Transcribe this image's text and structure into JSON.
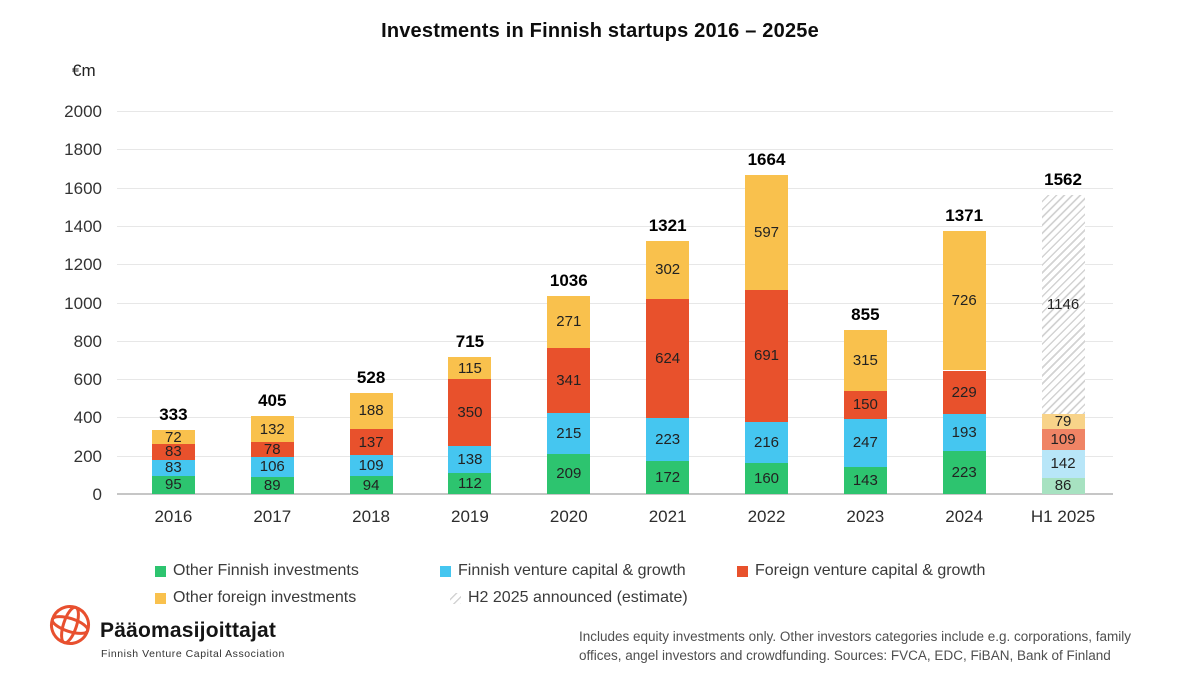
{
  "chart_data": {
    "type": "bar",
    "stacked": true,
    "title": "Investments in Finnish startups 2016 – 2025e",
    "ylabel": "€m",
    "xlabel": "",
    "ylim": [
      0,
      2000
    ],
    "ytick_step": 200,
    "yticks": [
      0,
      200,
      400,
      600,
      800,
      1000,
      1200,
      1400,
      1600,
      1800,
      2000
    ],
    "grid": true,
    "legend_position": "bottom",
    "categories": [
      "2016",
      "2017",
      "2018",
      "2019",
      "2020",
      "2021",
      "2022",
      "2023",
      "2024",
      "H1 2025"
    ],
    "series": [
      {
        "name": "Other Finnish investments",
        "color": "#2dc46f",
        "muted_color": "#a7e2c1",
        "values": [
          95,
          89,
          94,
          112,
          209,
          172,
          160,
          143,
          223,
          86
        ]
      },
      {
        "name": "Finnish venture capital & growth",
        "color": "#45c6f0",
        "muted_color": "#b8e6f8",
        "values": [
          83,
          106,
          109,
          138,
          215,
          223,
          216,
          247,
          193,
          142
        ]
      },
      {
        "name": "Foreign venture capital & growth",
        "color": "#e8512c",
        "muted_color": "#ef8465",
        "values": [
          83,
          78,
          137,
          350,
          341,
          624,
          691,
          150,
          229,
          109
        ]
      },
      {
        "name": "Other foreign investments",
        "color": "#f9c14d",
        "muted_color": "#f8d389",
        "values": [
          72,
          132,
          188,
          115,
          271,
          302,
          597,
          315,
          726,
          79
        ]
      },
      {
        "name": "H2 2025 announced (estimate)",
        "pattern": "hatch",
        "values": [
          0,
          0,
          0,
          0,
          0,
          0,
          0,
          0,
          0,
          1146
        ]
      }
    ],
    "totals": [
      333,
      405,
      528,
      715,
      1036,
      1321,
      1664,
      855,
      1371,
      1562
    ],
    "muted_category_index": 9
  },
  "footer": {
    "logo_title": "Pääomasijoittajat",
    "logo_subtitle": "Finnish Venture Capital Association",
    "logo_color": "#e8502f",
    "note_lines": [
      "Includes equity investments only. Other investors categories include e.g. corporations, family",
      "offices, angel investors and crowdfunding. Sources: FVCA, EDC, FiBAN, Bank of Finland"
    ]
  }
}
